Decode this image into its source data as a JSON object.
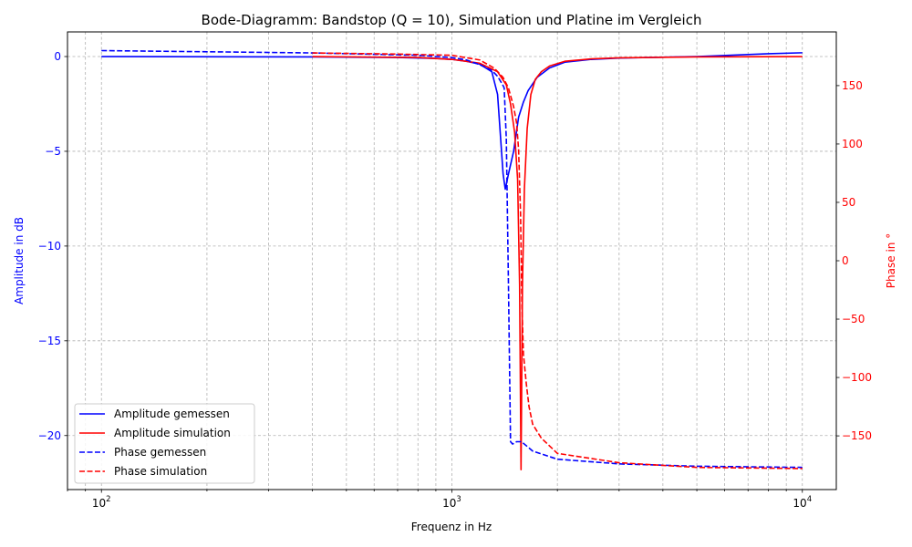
{
  "chart_data": {
    "type": "line",
    "title": "Bode-Diagramm: Bandstop (Q = 10), Simulation und Platine im Vergleich",
    "xlabel": "Frequenz in Hz",
    "ylabel_left": "Amplitude in dB",
    "ylabel_right": "Phase in °",
    "x_scale": "log",
    "xlim": [
      80,
      12500
    ],
    "ylim_left": [
      -22.85,
      1.3
    ],
    "ylim_right": [
      -196,
      196
    ],
    "grid": true,
    "legend_position": "lower-left",
    "colors": {
      "blue": "#0000ff",
      "red": "#ff0000"
    },
    "x_ticks": [
      {
        "value": 100,
        "base": "10",
        "exp": "2"
      },
      {
        "value": 1000,
        "base": "10",
        "exp": "3"
      },
      {
        "value": 10000,
        "base": "10",
        "exp": "4"
      }
    ],
    "y_ticks_left": [
      {
        "value": 0,
        "label": "0"
      },
      {
        "value": -5,
        "label": "−5"
      },
      {
        "value": -10,
        "label": "−10"
      },
      {
        "value": -15,
        "label": "−15"
      },
      {
        "value": -20,
        "label": "−20"
      }
    ],
    "y_ticks_right": [
      {
        "value": 150,
        "label": "150"
      },
      {
        "value": 100,
        "label": "100"
      },
      {
        "value": 50,
        "label": "50"
      },
      {
        "value": 0,
        "label": "0"
      },
      {
        "value": -50,
        "label": "−50"
      },
      {
        "value": -100,
        "label": "−100"
      },
      {
        "value": -150,
        "label": "−150"
      }
    ],
    "series": [
      {
        "name": "Amplitude gemessen",
        "axis": "left",
        "color": "#0000ff",
        "dash": "solid",
        "points": [
          [
            100,
            0
          ],
          [
            400,
            -0.02
          ],
          [
            700,
            -0.05
          ],
          [
            900,
            -0.1
          ],
          [
            1000,
            -0.15
          ],
          [
            1100,
            -0.25
          ],
          [
            1200,
            -0.4
          ],
          [
            1300,
            -0.8
          ],
          [
            1350,
            -2.0
          ],
          [
            1400,
            -6.2
          ],
          [
            1420,
            -7.0
          ],
          [
            1450,
            -6.2
          ],
          [
            1500,
            -5.0
          ],
          [
            1550,
            -3.2
          ],
          [
            1600,
            -2.4
          ],
          [
            1650,
            -1.8
          ],
          [
            1750,
            -1.1
          ],
          [
            1900,
            -0.6
          ],
          [
            2100,
            -0.3
          ],
          [
            2500,
            -0.15
          ],
          [
            3000,
            -0.08
          ],
          [
            5000,
            0
          ],
          [
            8000,
            0.15
          ],
          [
            10000,
            0.2
          ]
        ]
      },
      {
        "name": "Amplitude simulation",
        "axis": "left",
        "color": "#ff0000",
        "dash": "solid",
        "points": [
          [
            400,
            0
          ],
          [
            800,
            -0.05
          ],
          [
            1000,
            -0.15
          ],
          [
            1200,
            -0.35
          ],
          [
            1350,
            -0.8
          ],
          [
            1430,
            -1.5
          ],
          [
            1470,
            -2.5
          ],
          [
            1510,
            -4.0
          ],
          [
            1540,
            -6.5
          ],
          [
            1560,
            -12.0
          ],
          [
            1575,
            -21.8
          ],
          [
            1590,
            -12.0
          ],
          [
            1610,
            -7.0
          ],
          [
            1640,
            -3.8
          ],
          [
            1680,
            -2.0
          ],
          [
            1730,
            -1.2
          ],
          [
            1800,
            -0.8
          ],
          [
            1900,
            -0.5
          ],
          [
            2100,
            -0.25
          ],
          [
            2500,
            -0.12
          ],
          [
            3000,
            -0.07
          ],
          [
            5000,
            -0.02
          ],
          [
            10000,
            0
          ]
        ]
      },
      {
        "name": "Phase gemessen",
        "axis": "right",
        "color": "#0000ff",
        "dash": "dashed",
        "points": [
          [
            100,
            180
          ],
          [
            400,
            178
          ],
          [
            800,
            176
          ],
          [
            1000,
            174
          ],
          [
            1100,
            172
          ],
          [
            1200,
            168
          ],
          [
            1300,
            163
          ],
          [
            1350,
            158
          ],
          [
            1400,
            150
          ],
          [
            1410,
            148
          ],
          [
            1430,
            104
          ],
          [
            1450,
            -20
          ],
          [
            1470,
            -155
          ],
          [
            1490,
            -157
          ],
          [
            1530,
            -155
          ],
          [
            1580,
            -155
          ],
          [
            1700,
            -163
          ],
          [
            2000,
            -170
          ],
          [
            3000,
            -174
          ],
          [
            5000,
            -176
          ],
          [
            10000,
            -177
          ]
        ]
      },
      {
        "name": "Phase simulation",
        "axis": "right",
        "color": "#ff0000",
        "dash": "dashed",
        "points": [
          [
            400,
            178
          ],
          [
            700,
            177
          ],
          [
            1000,
            176
          ],
          [
            1200,
            172
          ],
          [
            1320,
            165
          ],
          [
            1400,
            157
          ],
          [
            1450,
            148
          ],
          [
            1500,
            132
          ],
          [
            1530,
            118
          ],
          [
            1550,
            95
          ],
          [
            1570,
            40
          ],
          [
            1585,
            -40
          ],
          [
            1600,
            -80
          ],
          [
            1630,
            -105
          ],
          [
            1660,
            -125
          ],
          [
            1700,
            -140
          ],
          [
            1800,
            -152
          ],
          [
            2000,
            -165
          ],
          [
            3000,
            -173
          ],
          [
            5000,
            -177
          ],
          [
            10000,
            -178
          ]
        ]
      }
    ]
  }
}
